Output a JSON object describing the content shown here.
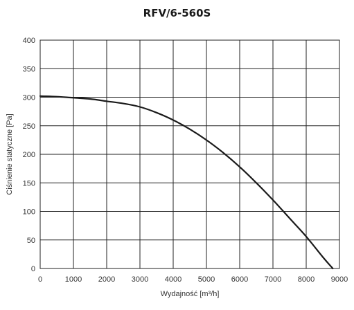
{
  "chart_data": {
    "type": "line",
    "title": "RFV/6-560S",
    "xlabel": "Wydajność [m³/h]",
    "ylabel": "Ciśnienie statyczne [Pa]",
    "xlim": [
      0,
      9000
    ],
    "ylim": [
      0,
      400
    ],
    "xticks": [
      0,
      1000,
      2000,
      3000,
      4000,
      5000,
      6000,
      7000,
      8000,
      9000
    ],
    "yticks": [
      0,
      50,
      100,
      150,
      200,
      250,
      300,
      350,
      400
    ],
    "grid": true,
    "series": [
      {
        "color": "#1a1a1a",
        "x": [
          0,
          500,
          1000,
          1500,
          2000,
          2500,
          3000,
          3500,
          4000,
          4500,
          5000,
          5500,
          6000,
          6500,
          7000,
          7500,
          8000,
          8500,
          8800
        ],
        "y": [
          302,
          301,
          299,
          297,
          293,
          289,
          283,
          273,
          260,
          244,
          225,
          203,
          178,
          150,
          120,
          88,
          56,
          20,
          0
        ]
      }
    ]
  }
}
